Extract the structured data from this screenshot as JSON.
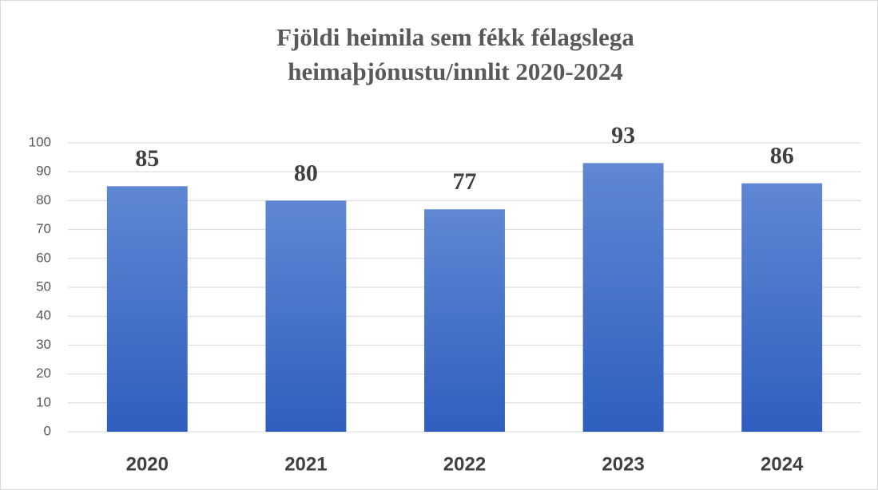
{
  "chart_data": {
    "type": "bar",
    "title": [
      "Fjöldi heimila sem fékk félagslega",
      "heimaþjónustu/innlit 2020-2024"
    ],
    "categories": [
      "2020",
      "2021",
      "2022",
      "2023",
      "2024"
    ],
    "values": [
      85,
      80,
      77,
      93,
      86
    ],
    "color": "#3f6fcc",
    "ylim": [
      0,
      100
    ],
    "yticks": [
      0,
      10,
      20,
      30,
      40,
      50,
      60,
      70,
      80,
      90,
      100
    ],
    "grid": true
  }
}
